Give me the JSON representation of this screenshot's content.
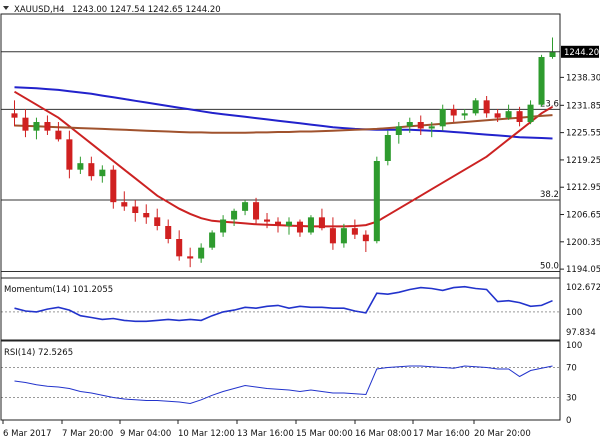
{
  "chart_data": [
    {
      "type": "candlestick",
      "title": "XAUUSD,H4",
      "ohlc_header": "1243.00 1247.54 1242.65 1244.20",
      "last_price_label": "1244.20",
      "ylim": [
        1192.0,
        1252.0
      ],
      "y_ticks": [
        "1238.30",
        "1231.85",
        "1225.55",
        "1219.25",
        "1212.95",
        "1206.65",
        "1200.35",
        "1194.05"
      ],
      "x_ticks": [
        "6 Mar 2017",
        "7 Mar 20:00",
        "9 Mar 04:00",
        "10 Mar 12:00",
        "13 Mar 16:00",
        "15 Mar 00:00",
        "16 Mar 08:00",
        "17 Mar 16:00",
        "20 Mar 20:00"
      ],
      "fib_levels": [
        {
          "label": "23.6",
          "value": 1230.9
        },
        {
          "label": "38.2",
          "value": 1210.0
        },
        {
          "label": "50.0",
          "value": 1193.5
        }
      ],
      "candles": [
        [
          1230.0,
          1233.0,
          1227.0,
          1229.0
        ],
        [
          1229.0,
          1231.0,
          1224.5,
          1226.0
        ],
        [
          1226.0,
          1229.0,
          1224.0,
          1228.0
        ],
        [
          1228.0,
          1229.5,
          1225.0,
          1226.0
        ],
        [
          1226.0,
          1228.0,
          1223.5,
          1224.0
        ],
        [
          1224.0,
          1226.0,
          1215.0,
          1217.0
        ],
        [
          1217.0,
          1220.0,
          1216.0,
          1218.5
        ],
        [
          1218.5,
          1220.0,
          1214.5,
          1215.5
        ],
        [
          1215.5,
          1218.0,
          1214.0,
          1217.0
        ],
        [
          1217.0,
          1218.0,
          1208.0,
          1209.5
        ],
        [
          1209.5,
          1212.0,
          1207.5,
          1208.5
        ],
        [
          1208.5,
          1210.0,
          1205.0,
          1207.0
        ],
        [
          1207.0,
          1209.0,
          1204.5,
          1206.0
        ],
        [
          1206.0,
          1208.0,
          1203.0,
          1204.0
        ],
        [
          1204.0,
          1205.5,
          1200.0,
          1201.0
        ],
        [
          1201.0,
          1203.0,
          1196.0,
          1197.0
        ],
        [
          1197.0,
          1199.0,
          1194.5,
          1196.5
        ],
        [
          1196.5,
          1200.0,
          1195.5,
          1199.0
        ],
        [
          1199.0,
          1203.0,
          1198.5,
          1202.5
        ],
        [
          1202.5,
          1206.5,
          1201.5,
          1205.5
        ],
        [
          1205.5,
          1208.0,
          1204.0,
          1207.5
        ],
        [
          1207.5,
          1210.0,
          1206.5,
          1209.5
        ],
        [
          1209.5,
          1210.5,
          1204.5,
          1205.5
        ],
        [
          1205.5,
          1207.0,
          1203.5,
          1205.0
        ],
        [
          1205.0,
          1206.0,
          1202.5,
          1204.0
        ],
        [
          1204.0,
          1206.0,
          1202.0,
          1205.0
        ],
        [
          1205.0,
          1205.5,
          1201.5,
          1202.5
        ],
        [
          1202.5,
          1206.5,
          1202.0,
          1206.0
        ],
        [
          1206.0,
          1208.0,
          1203.0,
          1203.5
        ],
        [
          1203.5,
          1206.0,
          1198.5,
          1200.0
        ],
        [
          1200.0,
          1204.5,
          1199.0,
          1203.5
        ],
        [
          1203.5,
          1205.5,
          1201.0,
          1202.0
        ],
        [
          1202.0,
          1203.0,
          1198.0,
          1200.5
        ],
        [
          1200.5,
          1220.0,
          1200.0,
          1219.0
        ],
        [
          1219.0,
          1226.0,
          1218.0,
          1225.0
        ],
        [
          1225.0,
          1228.0,
          1223.0,
          1227.0
        ],
        [
          1227.0,
          1229.0,
          1225.5,
          1228.0
        ],
        [
          1228.0,
          1229.5,
          1225.0,
          1226.5
        ],
        [
          1226.5,
          1228.0,
          1224.5,
          1227.0
        ],
        [
          1227.0,
          1232.0,
          1226.0,
          1231.0
        ],
        [
          1231.0,
          1232.0,
          1228.0,
          1229.5
        ],
        [
          1229.5,
          1231.0,
          1228.5,
          1230.0
        ],
        [
          1230.0,
          1233.5,
          1229.5,
          1233.0
        ],
        [
          1233.0,
          1234.0,
          1229.0,
          1230.0
        ],
        [
          1230.0,
          1231.0,
          1228.0,
          1229.0
        ],
        [
          1229.0,
          1232.0,
          1228.5,
          1230.5
        ],
        [
          1230.5,
          1231.5,
          1227.0,
          1228.0
        ],
        [
          1228.0,
          1233.0,
          1227.5,
          1232.0
        ],
        [
          1232.0,
          1243.5,
          1231.5,
          1243.0
        ],
        [
          1243.0,
          1247.5,
          1242.6,
          1244.2
        ]
      ],
      "series": [
        {
          "color": "#2222cc",
          "values": [
            1236.0,
            1235.9,
            1235.8,
            1235.6,
            1235.4,
            1235.1,
            1234.8,
            1234.5,
            1234.1,
            1233.7,
            1233.3,
            1232.9,
            1232.5,
            1232.1,
            1231.7,
            1231.3,
            1230.9,
            1230.5,
            1230.1,
            1229.8,
            1229.5,
            1229.2,
            1228.9,
            1228.6,
            1228.3,
            1228.0,
            1227.7,
            1227.4,
            1227.1,
            1226.8,
            1226.6,
            1226.4,
            1226.3,
            1226.2,
            1226.2,
            1226.2,
            1226.2,
            1226.1,
            1226.0,
            1225.9,
            1225.7,
            1225.5,
            1225.3,
            1225.1,
            1224.9,
            1224.7,
            1224.5,
            1224.4,
            1224.3,
            1224.2
          ]
        },
        {
          "color": "#cc2222",
          "values": [
            1235.0,
            1233.5,
            1232.0,
            1230.5,
            1229.0,
            1227.0,
            1225.0,
            1223.0,
            1221.0,
            1219.0,
            1217.0,
            1215.0,
            1213.0,
            1211.0,
            1209.5,
            1208.0,
            1206.8,
            1205.8,
            1205.2,
            1205.0,
            1204.8,
            1204.6,
            1204.4,
            1204.3,
            1204.2,
            1204.1,
            1204.0,
            1203.9,
            1203.9,
            1203.9,
            1203.9,
            1204.0,
            1204.2,
            1205.0,
            1206.5,
            1208.0,
            1209.5,
            1211.0,
            1212.5,
            1214.0,
            1215.5,
            1217.0,
            1218.5,
            1220.0,
            1222.0,
            1224.0,
            1226.0,
            1228.0,
            1230.0,
            1231.5
          ]
        },
        {
          "color": "#a0522d",
          "values": [
            1227.2,
            1227.1,
            1227.0,
            1226.9,
            1226.8,
            1226.7,
            1226.6,
            1226.5,
            1226.4,
            1226.3,
            1226.2,
            1226.1,
            1226.0,
            1225.9,
            1225.8,
            1225.7,
            1225.6,
            1225.6,
            1225.5,
            1225.5,
            1225.5,
            1225.5,
            1225.6,
            1225.6,
            1225.7,
            1225.7,
            1225.8,
            1225.8,
            1225.9,
            1226.0,
            1226.1,
            1226.2,
            1226.3,
            1226.4,
            1226.6,
            1226.8,
            1227.0,
            1227.2,
            1227.4,
            1227.6,
            1227.8,
            1228.0,
            1228.2,
            1228.4,
            1228.6,
            1228.8,
            1229.0,
            1229.2,
            1229.4,
            1229.6
          ]
        }
      ]
    },
    {
      "type": "line",
      "title": "Momentum(14) 101.2055",
      "ylim": [
        97.0,
        103.2
      ],
      "y_ticks": [
        "102.6729",
        "100",
        "97.834"
      ],
      "reference_line": 100,
      "series": [
        {
          "color": "#2233cc",
          "values": [
            100.4,
            100.1,
            100.0,
            100.3,
            100.5,
            100.2,
            99.6,
            99.4,
            99.2,
            99.3,
            99.1,
            99.0,
            99.0,
            99.1,
            99.2,
            99.1,
            99.2,
            99.1,
            99.6,
            100.0,
            100.2,
            100.5,
            100.4,
            100.6,
            100.7,
            100.4,
            100.6,
            100.5,
            100.5,
            100.4,
            100.4,
            100.1,
            99.9,
            102.0,
            101.9,
            102.1,
            102.4,
            102.6,
            102.5,
            102.3,
            102.6,
            102.7,
            102.5,
            102.4,
            101.1,
            101.2,
            101.0,
            100.6,
            100.7,
            101.2
          ]
        }
      ]
    },
    {
      "type": "line",
      "title": "RSI(14) 72.5265",
      "ylim": [
        0,
        100
      ],
      "y_ticks": [
        "100",
        "70",
        "30",
        "0"
      ],
      "reference_lines": [
        70,
        30
      ],
      "series": [
        {
          "color": "#2233cc",
          "values": [
            52,
            50,
            47,
            45,
            44,
            42,
            38,
            36,
            33,
            30,
            28,
            27,
            26,
            26,
            25,
            24,
            22,
            27,
            33,
            38,
            42,
            46,
            44,
            42,
            41,
            40,
            38,
            40,
            38,
            36,
            36,
            35,
            34,
            68,
            70,
            71,
            72,
            72,
            71,
            70,
            69,
            72,
            71,
            70,
            68,
            68,
            58,
            66,
            69,
            72
          ]
        }
      ]
    }
  ]
}
